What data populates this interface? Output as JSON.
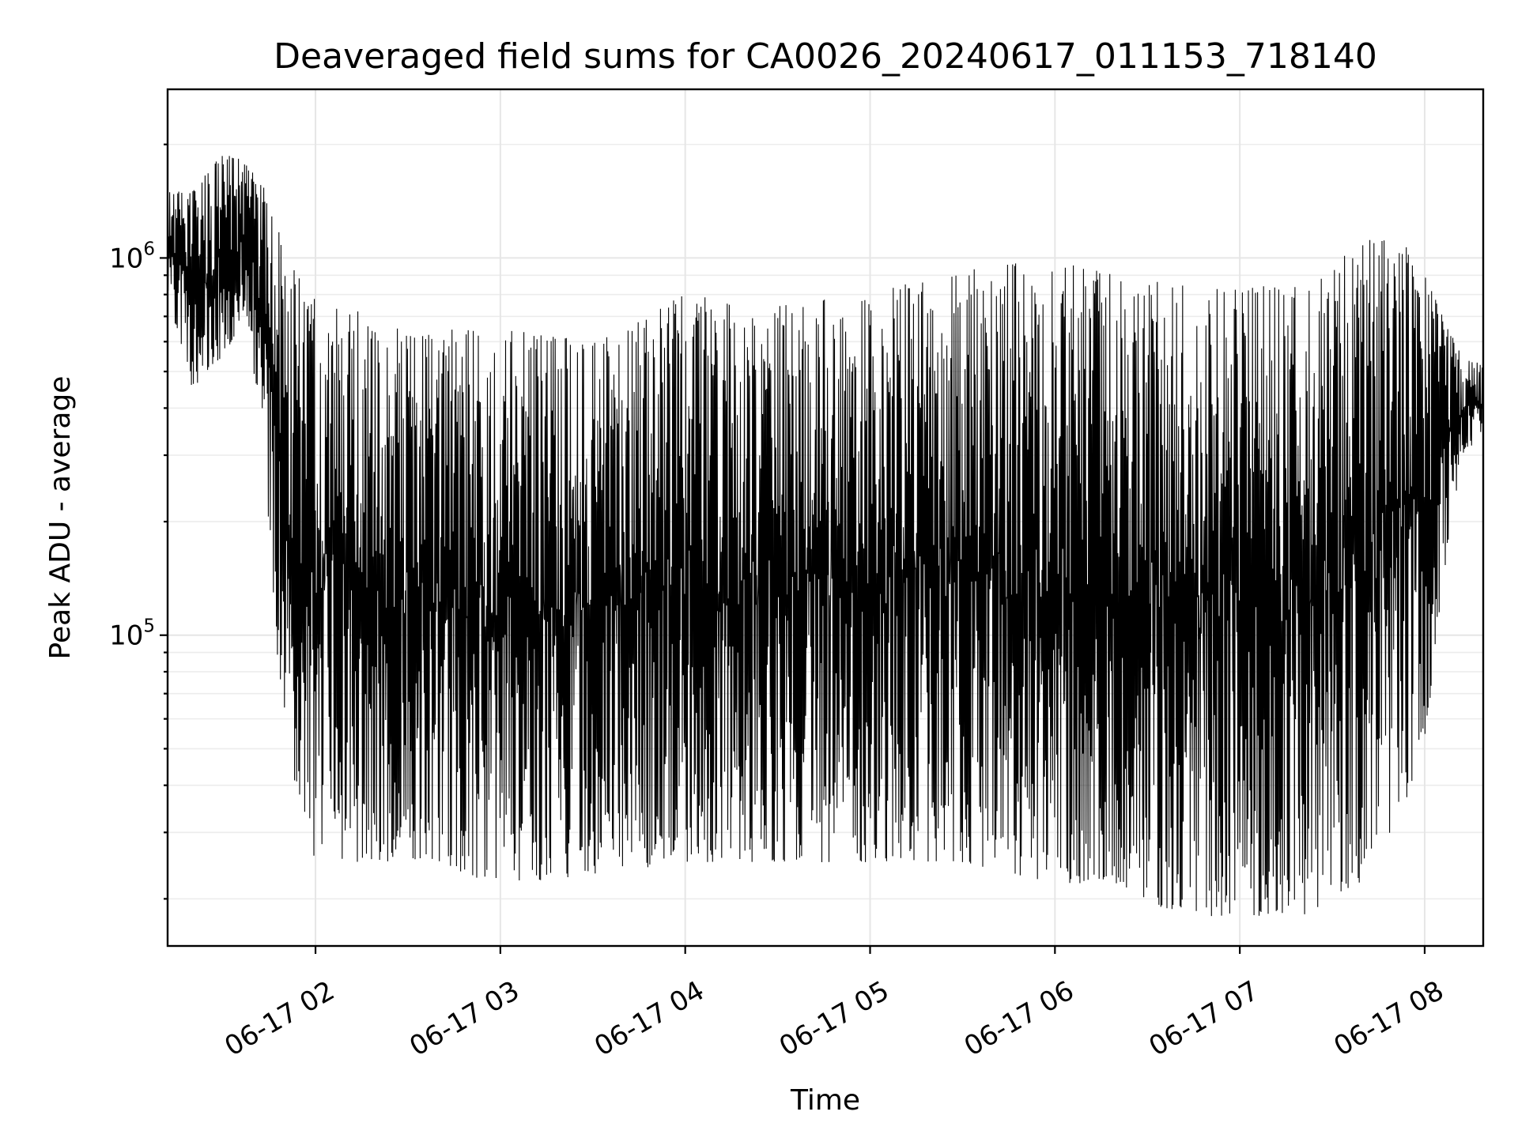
{
  "chart_data": {
    "type": "line",
    "title": "Deaveraged field sums for CA0026_20240617_011153_718140",
    "xlabel": "Time",
    "ylabel": "Peak ADU - average",
    "yscale": "log",
    "grid": true,
    "legend": "none",
    "line_color": "#000000",
    "xlim": [
      "2024-06-17T01:12",
      "2024-06-17T08:19"
    ],
    "ylim": [
      15000,
      2800000
    ],
    "x_ticks": [
      {
        "t": "2024-06-17T02:00",
        "label": "06-17 02"
      },
      {
        "t": "2024-06-17T03:00",
        "label": "06-17 03"
      },
      {
        "t": "2024-06-17T04:00",
        "label": "06-17 04"
      },
      {
        "t": "2024-06-17T05:00",
        "label": "06-17 05"
      },
      {
        "t": "2024-06-17T06:00",
        "label": "06-17 06"
      },
      {
        "t": "2024-06-17T07:00",
        "label": "06-17 07"
      },
      {
        "t": "2024-06-17T08:00",
        "label": "06-17 08"
      }
    ],
    "y_ticks": [
      {
        "v": 100000,
        "base": "10",
        "exp": "5"
      },
      {
        "v": 1000000,
        "base": "10",
        "exp": "6"
      }
    ],
    "series": [
      {
        "envelope": [
          {
            "t": "2024-06-17T01:12",
            "low": 800000,
            "high": 1500000
          },
          {
            "t": "2024-06-17T01:20",
            "low": 450000,
            "high": 1500000
          },
          {
            "t": "2024-06-17T01:30",
            "low": 550000,
            "high": 1900000
          },
          {
            "t": "2024-06-17T01:38",
            "low": 700000,
            "high": 1800000
          },
          {
            "t": "2024-06-17T01:44",
            "low": 250000,
            "high": 1500000
          },
          {
            "t": "2024-06-17T01:48",
            "low": 80000,
            "high": 1200000
          },
          {
            "t": "2024-06-17T01:52",
            "low": 45000,
            "high": 950000
          },
          {
            "t": "2024-06-17T02:00",
            "low": 25000,
            "high": 800000
          },
          {
            "t": "2024-06-17T02:30",
            "low": 25000,
            "high": 650000
          },
          {
            "t": "2024-06-17T03:00",
            "low": 22000,
            "high": 650000
          },
          {
            "t": "2024-06-17T03:30",
            "low": 23000,
            "high": 600000
          },
          {
            "t": "2024-06-17T04:00",
            "low": 25000,
            "high": 800000
          },
          {
            "t": "2024-06-17T04:30",
            "low": 25000,
            "high": 750000
          },
          {
            "t": "2024-06-17T05:00",
            "low": 25000,
            "high": 800000
          },
          {
            "t": "2024-06-17T05:30",
            "low": 25000,
            "high": 950000
          },
          {
            "t": "2024-06-17T06:00",
            "low": 22000,
            "high": 980000
          },
          {
            "t": "2024-06-17T06:20",
            "low": 22000,
            "high": 900000
          },
          {
            "t": "2024-06-17T06:40",
            "low": 18000,
            "high": 850000
          },
          {
            "t": "2024-06-17T07:00",
            "low": 18000,
            "high": 850000
          },
          {
            "t": "2024-06-17T07:20",
            "low": 18000,
            "high": 850000
          },
          {
            "t": "2024-06-17T07:40",
            "low": 22000,
            "high": 1100000
          },
          {
            "t": "2024-06-17T07:50",
            "low": 30000,
            "high": 1200000
          },
          {
            "t": "2024-06-17T08:00",
            "low": 50000,
            "high": 900000
          },
          {
            "t": "2024-06-17T08:06",
            "low": 140000,
            "high": 700000
          },
          {
            "t": "2024-06-17T08:12",
            "low": 300000,
            "high": 550000
          },
          {
            "t": "2024-06-17T08:19",
            "low": 330000,
            "high": 520000
          }
        ]
      }
    ]
  }
}
